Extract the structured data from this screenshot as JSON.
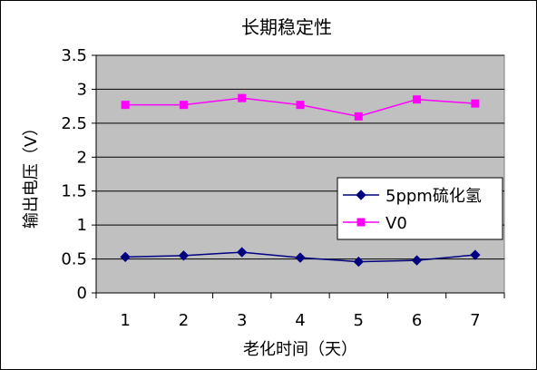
{
  "chart_data": {
    "type": "line",
    "title": "长期稳定性",
    "xlabel": "老化时间（天）",
    "ylabel": "输出电压（V）",
    "categories": [
      "1",
      "2",
      "3",
      "4",
      "5",
      "6",
      "7"
    ],
    "ylim": [
      0,
      3.5
    ],
    "yticks": [
      "0",
      "0.5",
      "1",
      "1.5",
      "2",
      "2.5",
      "3",
      "3.5"
    ],
    "grid": true,
    "plot_background": "#c0c0c0",
    "legend_position": "right",
    "series": [
      {
        "name": "5ppm硫化氢",
        "color": "#000080",
        "marker": "diamond",
        "values": [
          0.53,
          0.55,
          0.6,
          0.52,
          0.46,
          0.48,
          0.56
        ]
      },
      {
        "name": "V0",
        "color": "#ff00ff",
        "marker": "square",
        "values": [
          2.77,
          2.77,
          2.87,
          2.77,
          2.6,
          2.85,
          2.79
        ]
      }
    ]
  }
}
